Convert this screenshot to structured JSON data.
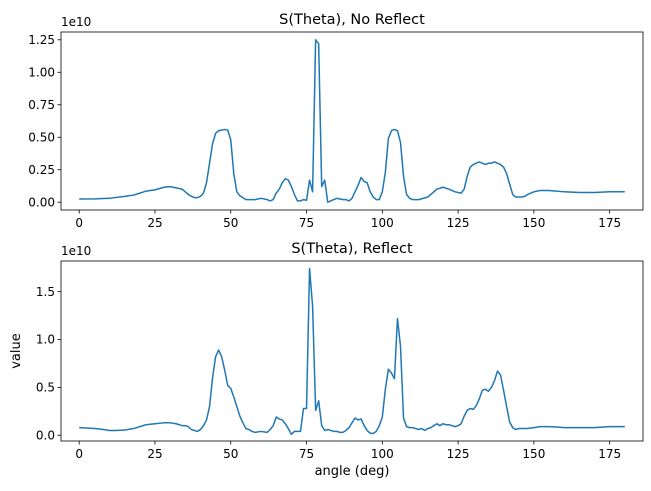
{
  "chart_data": [
    {
      "type": "line",
      "title": "S(Theta), No Reflect",
      "xlabel": "",
      "ylabel": "",
      "offset_text": "1e10",
      "xlim": [
        -6,
        186
      ],
      "ylim": [
        -0.06,
        1.31
      ],
      "xticks": [
        0,
        25,
        50,
        75,
        100,
        125,
        150,
        175
      ],
      "xtick_labels": [
        "0",
        "25",
        "50",
        "75",
        "100",
        "125",
        "150",
        "175"
      ],
      "yticks": [
        0.0,
        0.25,
        0.5,
        0.75,
        1.0,
        1.25
      ],
      "ytick_labels": [
        "0.00",
        "0.25",
        "0.50",
        "0.75",
        "1.00",
        "1.25"
      ],
      "grid": false,
      "color": "#1f77b4",
      "series": [
        {
          "x": [
            0,
            5,
            10,
            15,
            18,
            20,
            22,
            25,
            28,
            30,
            32,
            34,
            36,
            37,
            38,
            39,
            40,
            41,
            42,
            43,
            44,
            45,
            46,
            47,
            48,
            49,
            50,
            51,
            52,
            53,
            55,
            58,
            60,
            62,
            63,
            64,
            65,
            66,
            67,
            68,
            69,
            70,
            71,
            72,
            73,
            74,
            75,
            76,
            77,
            78,
            79,
            80,
            81,
            82,
            83,
            84,
            85,
            86,
            87,
            88,
            89,
            90,
            91,
            92,
            93,
            94,
            95,
            96,
            97,
            98,
            99,
            100,
            101,
            102,
            103,
            104,
            105,
            106,
            107,
            108,
            109,
            110,
            112,
            115,
            118,
            120,
            122,
            124,
            126,
            127,
            128,
            129,
            130,
            131,
            132,
            133,
            134,
            135,
            136,
            137,
            138,
            139,
            140,
            141,
            142,
            143,
            144,
            145,
            146,
            147,
            148,
            150,
            152,
            155,
            160,
            165,
            170,
            175,
            180
          ],
          "y": [
            0.025,
            0.026,
            0.03,
            0.045,
            0.055,
            0.07,
            0.085,
            0.095,
            0.115,
            0.12,
            0.11,
            0.1,
            0.06,
            0.045,
            0.035,
            0.035,
            0.045,
            0.07,
            0.15,
            0.3,
            0.45,
            0.53,
            0.55,
            0.555,
            0.56,
            0.555,
            0.48,
            0.22,
            0.08,
            0.05,
            0.02,
            0.02,
            0.03,
            0.02,
            0.01,
            0.02,
            0.07,
            0.1,
            0.15,
            0.18,
            0.17,
            0.12,
            0.06,
            0.01,
            0.01,
            0.02,
            0.015,
            0.17,
            0.08,
            1.25,
            1.22,
            0.12,
            0.17,
            0.0,
            0.01,
            0.02,
            0.03,
            0.025,
            0.02,
            0.02,
            0.01,
            0.03,
            0.08,
            0.13,
            0.19,
            0.16,
            0.15,
            0.08,
            0.04,
            0.02,
            0.02,
            0.08,
            0.23,
            0.49,
            0.55,
            0.56,
            0.55,
            0.46,
            0.2,
            0.06,
            0.03,
            0.02,
            0.02,
            0.04,
            0.1,
            0.115,
            0.1,
            0.08,
            0.07,
            0.1,
            0.2,
            0.27,
            0.29,
            0.3,
            0.31,
            0.3,
            0.29,
            0.3,
            0.3,
            0.31,
            0.3,
            0.29,
            0.27,
            0.22,
            0.14,
            0.06,
            0.04,
            0.04,
            0.04,
            0.045,
            0.06,
            0.08,
            0.09,
            0.09,
            0.08,
            0.075,
            0.075,
            0.08,
            0.08
          ]
        }
      ]
    },
    {
      "type": "line",
      "title": "S(Theta), Reflect",
      "xlabel": "angle (deg)",
      "ylabel": "value",
      "offset_text": "1e10",
      "xlim": [
        -6,
        186
      ],
      "ylim": [
        -0.06,
        1.82
      ],
      "xticks": [
        0,
        25,
        50,
        75,
        100,
        125,
        150,
        175
      ],
      "xtick_labels": [
        "0",
        "25",
        "50",
        "75",
        "100",
        "125",
        "150",
        "175"
      ],
      "yticks": [
        0.0,
        0.5,
        1.0,
        1.5
      ],
      "ytick_labels": [
        "0.0",
        "0.5",
        "1.0",
        "1.5"
      ],
      "grid": false,
      "color": "#1f77b4",
      "series": [
        {
          "x": [
            0,
            3,
            5,
            8,
            10,
            12,
            15,
            18,
            20,
            22,
            25,
            28,
            30,
            32,
            34,
            35,
            36,
            37,
            38,
            39,
            40,
            41,
            42,
            43,
            44,
            45,
            46,
            47,
            48,
            49,
            50,
            51,
            52,
            53,
            54,
            55,
            56,
            57,
            58,
            60,
            62,
            63,
            64,
            65,
            66,
            67,
            68,
            69,
            70,
            71,
            72,
            73,
            74,
            75,
            76,
            77,
            78,
            79,
            80,
            81,
            82,
            83,
            84,
            85,
            86,
            87,
            88,
            89,
            90,
            91,
            92,
            93,
            94,
            95,
            96,
            97,
            98,
            99,
            100,
            101,
            102,
            103,
            104,
            105,
            106,
            107,
            108,
            109,
            110,
            111,
            112,
            113,
            114,
            115,
            116,
            117,
            118,
            119,
            120,
            121,
            122,
            123,
            124,
            125,
            126,
            127,
            128,
            129,
            130,
            131,
            132,
            133,
            134,
            135,
            136,
            137,
            138,
            139,
            140,
            141,
            142,
            143,
            144,
            145,
            146,
            148,
            150,
            152,
            155,
            158,
            160,
            165,
            170,
            175,
            180
          ],
          "y": [
            0.08,
            0.075,
            0.07,
            0.06,
            0.05,
            0.05,
            0.055,
            0.07,
            0.09,
            0.11,
            0.12,
            0.13,
            0.13,
            0.12,
            0.1,
            0.1,
            0.09,
            0.06,
            0.05,
            0.04,
            0.06,
            0.1,
            0.16,
            0.3,
            0.6,
            0.82,
            0.89,
            0.82,
            0.68,
            0.52,
            0.49,
            0.4,
            0.3,
            0.2,
            0.13,
            0.07,
            0.06,
            0.04,
            0.03,
            0.04,
            0.03,
            0.06,
            0.1,
            0.19,
            0.17,
            0.16,
            0.12,
            0.07,
            0.01,
            0.04,
            0.04,
            0.04,
            0.28,
            0.28,
            1.74,
            1.35,
            0.26,
            0.36,
            0.1,
            0.05,
            0.06,
            0.05,
            0.04,
            0.04,
            0.03,
            0.03,
            0.05,
            0.08,
            0.13,
            0.18,
            0.16,
            0.17,
            0.1,
            0.05,
            0.02,
            0.02,
            0.04,
            0.1,
            0.19,
            0.48,
            0.69,
            0.65,
            0.59,
            1.22,
            0.93,
            0.18,
            0.09,
            0.08,
            0.08,
            0.07,
            0.06,
            0.07,
            0.05,
            0.07,
            0.08,
            0.1,
            0.12,
            0.1,
            0.12,
            0.11,
            0.11,
            0.1,
            0.09,
            0.1,
            0.12,
            0.2,
            0.26,
            0.28,
            0.27,
            0.31,
            0.38,
            0.47,
            0.48,
            0.46,
            0.5,
            0.57,
            0.67,
            0.63,
            0.47,
            0.3,
            0.14,
            0.08,
            0.06,
            0.07,
            0.07,
            0.07,
            0.08,
            0.09,
            0.09,
            0.085,
            0.08,
            0.08,
            0.08,
            0.09,
            0.09
          ]
        }
      ]
    }
  ]
}
